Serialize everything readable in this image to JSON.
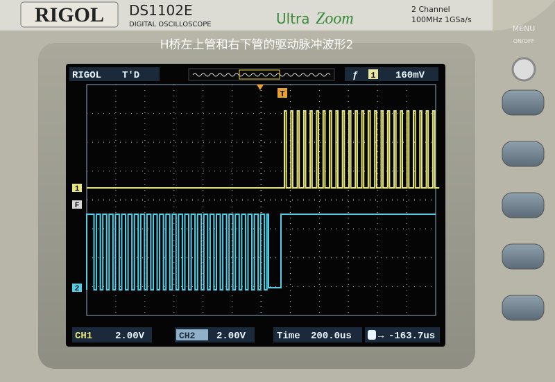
{
  "header": {
    "brand": "RIGOL",
    "model": "DS1102E",
    "subtitle": "DIGITAL OSCILLOSCOPE",
    "logo_ultra": "Ultra",
    "logo_zoom": "Zoom",
    "channels": "2 Channel",
    "specs": "100MHz 1GSa/s"
  },
  "caption": "H桥左上管和右下管的驱动脉冲波形2",
  "side_panel": {
    "menu": "MENU",
    "on_off": "ON/OFF"
  },
  "screen": {
    "status": {
      "brand": "RIGOL",
      "mode": "T'D",
      "trigger_source": "1",
      "trigger_level": "160mV"
    },
    "markers": {
      "trigger": "T",
      "ch1": "1",
      "f": "F",
      "ch2": "2"
    },
    "footer": {
      "ch1_label": "CH1",
      "ch1_scale": "2.00V",
      "ch2_label": "CH2",
      "ch2_scale": "2.00V",
      "time_label": "Time",
      "time_base": "200.0us",
      "trigger_offset": "-163.7us"
    }
  }
}
